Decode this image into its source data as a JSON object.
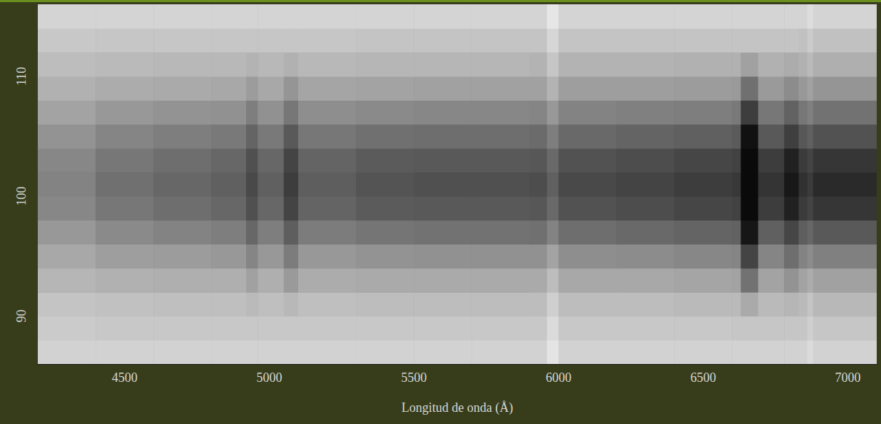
{
  "chart_data": {
    "type": "heatmap",
    "x_label": "Longitud de onda (Å)",
    "xlim": [
      4200,
      7100
    ],
    "xticks": [
      4500,
      5000,
      5500,
      6000,
      6500,
      7000
    ],
    "ylim": [
      86,
      116
    ],
    "yticks": [
      90,
      100,
      110
    ],
    "grid": false,
    "zlim": [
      0,
      100
    ],
    "x_bins": [
      4200,
      4400,
      4600,
      4800,
      4920,
      4960,
      5050,
      5100,
      5300,
      5500,
      5700,
      5900,
      5960,
      6000,
      6200,
      6400,
      6600,
      6630,
      6690,
      6780,
      6830,
      6860,
      6880,
      7100
    ],
    "y_bins": [
      86,
      88,
      90,
      92,
      94,
      96,
      98,
      100,
      102,
      104,
      106,
      108,
      110,
      112,
      114,
      116
    ],
    "cells": [
      [
        14,
        14,
        14,
        14,
        14,
        14,
        14,
        14,
        14,
        14,
        14,
        14,
        6,
        14,
        14,
        14,
        14,
        14,
        14,
        14,
        14,
        10,
        14
      ],
      [
        17,
        18,
        18,
        18,
        18,
        18,
        18,
        18,
        18,
        18,
        18,
        18,
        10,
        18,
        18,
        18,
        19,
        19,
        19,
        19,
        19,
        15,
        19
      ],
      [
        20,
        21,
        22,
        22,
        24,
        22,
        25,
        22,
        23,
        23,
        23,
        23,
        15,
        23,
        23,
        24,
        24,
        31,
        24,
        26,
        24,
        20,
        25
      ],
      [
        26,
        28,
        29,
        29,
        35,
        29,
        38,
        30,
        31,
        31,
        31,
        31,
        23,
        32,
        32,
        33,
        34,
        55,
        34,
        41,
        34,
        30,
        35
      ],
      [
        32,
        36,
        37,
        39,
        47,
        39,
        51,
        39,
        41,
        42,
        42,
        42,
        34,
        43,
        44,
        46,
        47,
        75,
        47,
        57,
        48,
        44,
        49
      ],
      [
        39,
        45,
        48,
        50,
        60,
        50,
        64,
        51,
        54,
        55,
        55,
        56,
        48,
        57,
        59,
        61,
        62,
        95,
        63,
        74,
        64,
        60,
        66
      ],
      [
        46,
        53,
        57,
        60,
        70,
        60,
        75,
        61,
        65,
        66,
        66,
        67,
        59,
        69,
        71,
        74,
        76,
        100,
        78,
        90,
        79,
        75,
        81
      ],
      [
        48,
        56,
        60,
        63,
        73,
        63,
        78,
        64,
        68,
        70,
        70,
        71,
        63,
        73,
        75,
        78,
        80,
        100,
        82,
        94,
        83,
        79,
        86
      ],
      [
        46,
        53,
        57,
        60,
        70,
        60,
        75,
        61,
        65,
        66,
        66,
        67,
        59,
        69,
        71,
        74,
        76,
        100,
        78,
        90,
        79,
        75,
        81
      ],
      [
        41,
        47,
        50,
        52,
        61,
        52,
        66,
        53,
        56,
        57,
        57,
        58,
        50,
        59,
        61,
        63,
        65,
        97,
        66,
        77,
        67,
        63,
        69
      ],
      [
        34,
        39,
        41,
        42,
        50,
        42,
        53,
        43,
        45,
        46,
        46,
        47,
        39,
        48,
        49,
        50,
        52,
        78,
        53,
        62,
        53,
        49,
        55
      ],
      [
        28,
        30,
        31,
        32,
        37,
        32,
        40,
        33,
        34,
        35,
        35,
        35,
        27,
        36,
        36,
        37,
        38,
        56,
        38,
        44,
        39,
        35,
        40
      ],
      [
        23,
        24,
        25,
        25,
        27,
        25,
        28,
        25,
        26,
        26,
        26,
        27,
        19,
        27,
        27,
        28,
        28,
        35,
        28,
        30,
        28,
        24,
        29
      ],
      [
        18,
        19,
        19,
        19,
        19,
        19,
        19,
        19,
        20,
        20,
        20,
        20,
        12,
        20,
        20,
        20,
        20,
        20,
        20,
        20,
        21,
        17,
        21
      ],
      [
        13,
        13,
        13,
        13,
        13,
        13,
        13,
        13,
        13,
        13,
        13,
        13,
        5,
        13,
        13,
        13,
        13,
        13,
        13,
        13,
        13,
        9,
        13
      ]
    ]
  }
}
